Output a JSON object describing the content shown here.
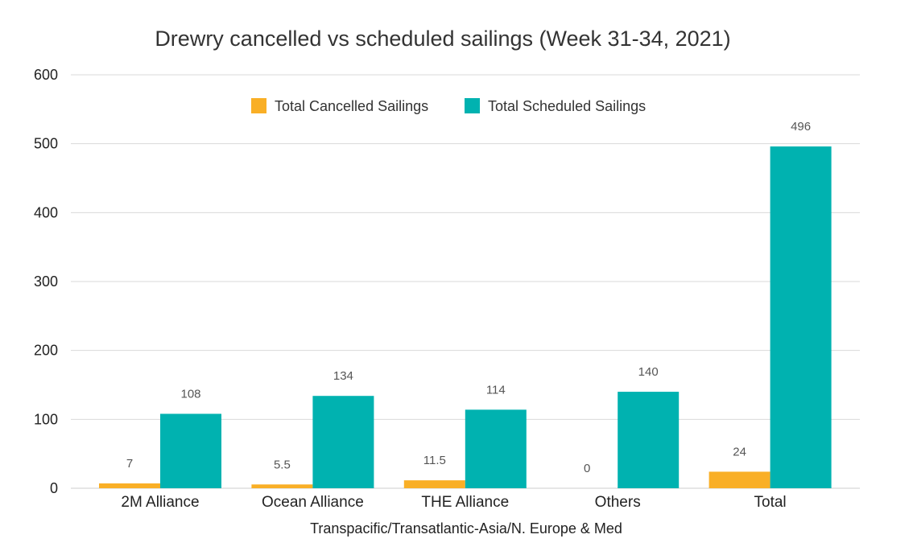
{
  "chart_data": {
    "type": "bar",
    "title": "Drewry cancelled vs scheduled sailings (Week 31-34, 2021)",
    "xlabel": "Transpacific/Transatlantic-Asia/N. Europe & Med",
    "ylabel": "",
    "ylim": [
      0,
      600
    ],
    "yticks": [
      0,
      100,
      200,
      300,
      400,
      500,
      600
    ],
    "grid": true,
    "legend_position": "top-center",
    "categories": [
      "2M Alliance",
      "Ocean Alliance",
      "THE Alliance",
      "Others",
      "Total"
    ],
    "series": [
      {
        "name": "Total Cancelled Sailings",
        "color": "#F9AF26",
        "values": [
          7,
          5.5,
          11.5,
          0,
          24
        ],
        "labels": [
          "7",
          "5.5",
          "11.5",
          "0",
          "24"
        ]
      },
      {
        "name": "Total Scheduled Sailings",
        "color": "#00B2B0",
        "values": [
          108,
          134,
          114,
          140,
          496
        ],
        "labels": [
          "108",
          "134",
          "114",
          "140",
          "496"
        ]
      }
    ]
  }
}
